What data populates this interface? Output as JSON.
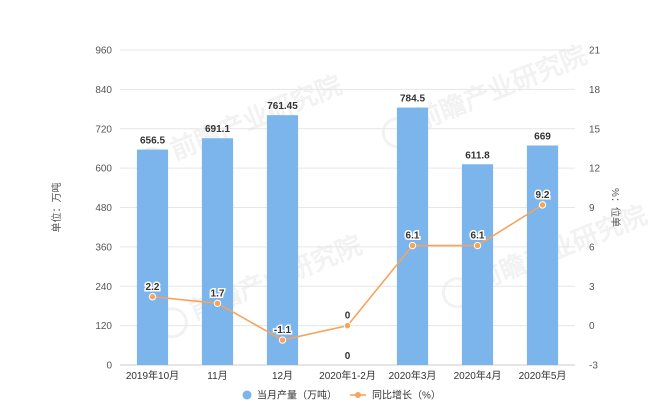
{
  "chart_data": {
    "type": "bar",
    "categories": [
      "2019年10月",
      "11月",
      "12月",
      "2020年1-2月",
      "2020年3月",
      "2020年4月",
      "2020年5月"
    ],
    "series": [
      {
        "name": "当月产量（万吨）",
        "type": "bar",
        "axis": "left",
        "color": "#7cb5ec",
        "values": [
          656.5,
          691.1,
          761.45,
          0,
          784.5,
          611.8,
          669
        ],
        "labels": [
          "656.5",
          "691.1",
          "761.45",
          "0",
          "784.5",
          "611.8",
          "669"
        ]
      },
      {
        "name": "同比增长（%）",
        "type": "line",
        "axis": "right",
        "color": "#f7a35c",
        "values": [
          2.2,
          1.7,
          -1.1,
          0,
          6.1,
          6.1,
          9.2
        ],
        "labels": [
          "2.2",
          "1.7",
          "-1.1",
          "0",
          "6.1",
          "6.1",
          "9.2"
        ]
      }
    ],
    "y_left": {
      "label": "单位：万吨",
      "ylim": [
        0,
        960
      ],
      "ticks": [
        "0",
        "120",
        "240",
        "360",
        "480",
        "600",
        "720",
        "840",
        "960"
      ]
    },
    "y_right": {
      "label": "%：位单",
      "ylim": [
        -3,
        21
      ],
      "ticks": [
        "-3",
        "0",
        "3",
        "6",
        "9",
        "12",
        "15",
        "18",
        "21"
      ]
    },
    "grid": true,
    "legend_position": "bottom-center",
    "watermark": "前瞻产业研究院"
  }
}
